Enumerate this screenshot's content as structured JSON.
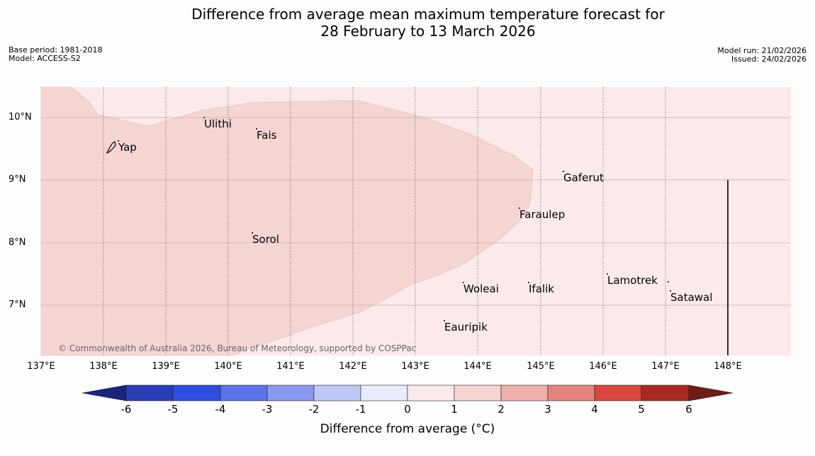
{
  "title_line1": "Difference from average mean maximum temperature forecast for",
  "title_line2": "28 February to 13 March 2026",
  "meta_left": {
    "base_period": "Base period: 1981-2018",
    "model": "Model: ACCESS-S2"
  },
  "meta_right": {
    "model_run": "Model run: 21/02/2026",
    "issued": "Issued: 24/02/2026"
  },
  "lat_labels": [
    "10°N",
    "9°N",
    "8°N",
    "7°N"
  ],
  "lon_labels": [
    "137°E",
    "138°E",
    "139°E",
    "140°E",
    "141°E",
    "142°E",
    "143°E",
    "144°E",
    "145°E",
    "146°E",
    "147°E",
    "148°E"
  ],
  "places": {
    "ulithi": "Ulithi",
    "fais": "Fais",
    "yap": "Yap",
    "gaferut": "Gaferut",
    "faraulep": "Faraulep",
    "sorol": "Sorol",
    "lamotrek": "Lamotrek",
    "woleai": "Woleai",
    "ifalik": "Ifalik",
    "satawal": "Satawal",
    "eauripik": "Eauripik"
  },
  "copyright": "© Commonwealth of Australia 2026, Bureau of Meteorology, supported by COSPPac",
  "colorbar": {
    "ticks": [
      "-6",
      "-5",
      "-4",
      "-3",
      "-2",
      "-1",
      "0",
      "1",
      "2",
      "3",
      "4",
      "5",
      "6"
    ],
    "label": "Difference from average (°C)",
    "colors": {
      "below_min": "#1a237e",
      "c_m6": "#2a3eb8",
      "c_m5": "#2f4fe0",
      "c_m4": "#5a73e6",
      "c_m3": "#8898ee",
      "c_m2": "#c0c8f5",
      "c_m1": "#e8ebfb",
      "c_0": "#fbeae9",
      "c_1": "#f5d5d3",
      "c_2": "#eeaeaa",
      "c_3": "#e5837e",
      "c_4": "#d9473e",
      "c_5": "#a82a25",
      "above_max": "#6e1d1a"
    }
  }
}
